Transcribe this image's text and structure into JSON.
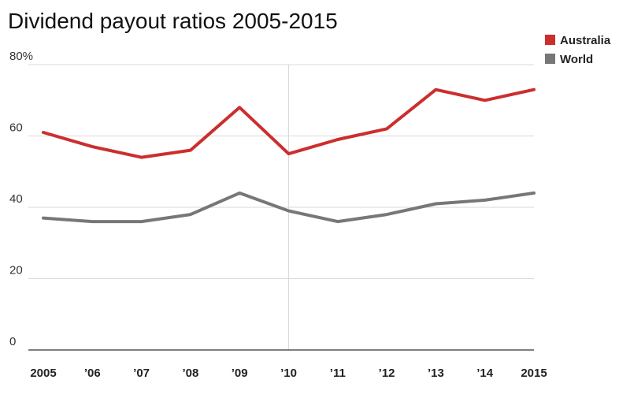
{
  "colors": {
    "australia": "#cc2e2e",
    "world": "#777777",
    "grid": "#d9d9d9",
    "baseline": "#333333"
  },
  "chart_data": {
    "type": "line",
    "title": "Dividend payout ratios 2005-2015",
    "xlabel": "",
    "ylabel": "",
    "x": [
      2005,
      2006,
      2007,
      2008,
      2009,
      2010,
      2011,
      2012,
      2013,
      2014,
      2015
    ],
    "x_tick_labels": [
      "2005",
      "’06",
      "’07",
      "’08",
      "’09",
      "’10",
      "’11",
      "’12",
      "’13",
      "’14",
      "2015"
    ],
    "y_tick_labels": [
      "0",
      "20",
      "40",
      "60",
      "80%"
    ],
    "y_ticks": [
      0,
      20,
      40,
      60,
      80
    ],
    "ylim": [
      0,
      80
    ],
    "grid": true,
    "highlight_x": 2010,
    "legend": "top-right",
    "series": [
      {
        "name": "Australia",
        "color": "#cc2e2e",
        "values": [
          61,
          57,
          54,
          56,
          68,
          55,
          59,
          62,
          73,
          70,
          73
        ]
      },
      {
        "name": "World",
        "color": "#777777",
        "values": [
          37,
          36,
          36,
          38,
          44,
          39,
          36,
          38,
          41,
          42,
          44
        ]
      }
    ]
  }
}
